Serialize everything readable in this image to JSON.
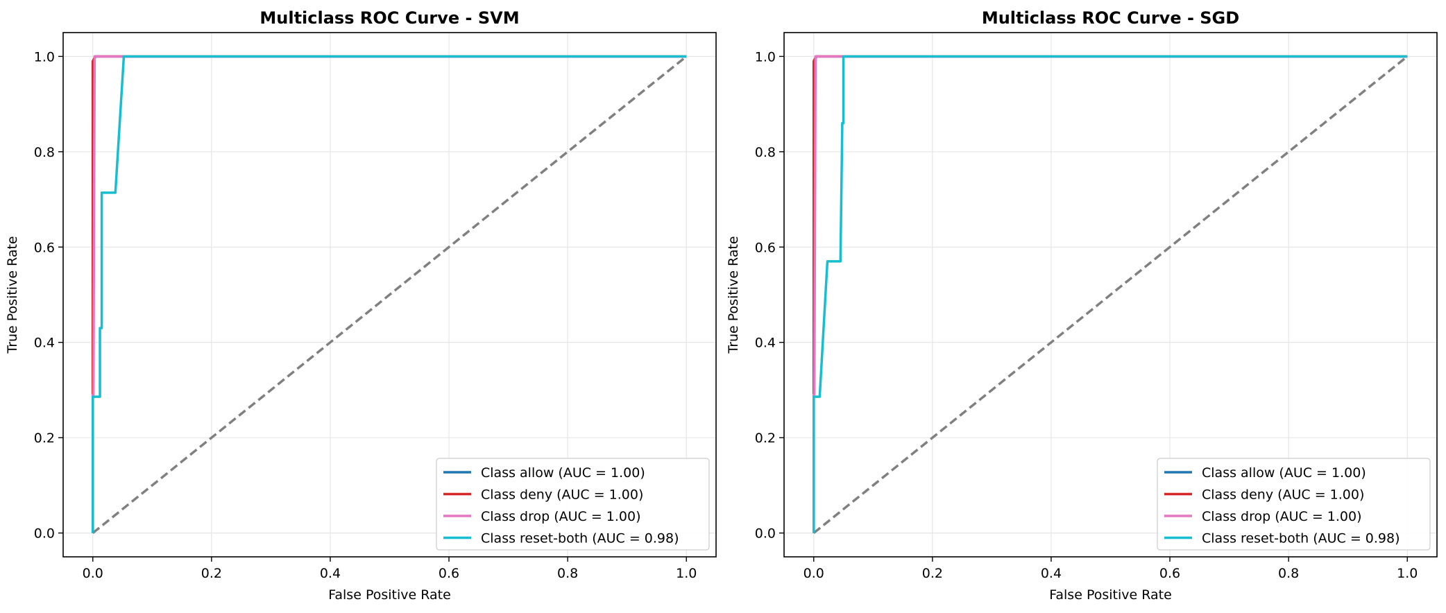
{
  "chart_data": [
    {
      "type": "line",
      "title": "Multiclass ROC Curve - SVM",
      "xlabel": "False Positive Rate",
      "ylabel": "True Positive Rate",
      "xlim": [
        -0.05,
        1.05
      ],
      "ylim": [
        -0.05,
        1.05
      ],
      "xticks": [
        "0.0",
        "0.2",
        "0.4",
        "0.6",
        "0.8",
        "1.0"
      ],
      "yticks": [
        "0.0",
        "0.2",
        "0.4",
        "0.6",
        "0.8",
        "1.0"
      ],
      "grid": true,
      "legend_position": "lower-right",
      "series": [
        {
          "name": "Class allow (AUC = 1.00)",
          "color": "#1f77b4",
          "x": [
            0,
            0,
            0.005,
            1
          ],
          "y": [
            0,
            0.99,
            1.0,
            1.0
          ]
        },
        {
          "name": "Class deny (AUC = 1.00)",
          "color": "#d62728",
          "x": [
            0,
            0,
            0.004,
            1
          ],
          "y": [
            0,
            0.99,
            1.0,
            1.0
          ]
        },
        {
          "name": "Class drop (AUC = 1.00)",
          "color": "#e377c2",
          "x": [
            0,
            0,
            0.001,
            0.003,
            0.05,
            0.05,
            1
          ],
          "y": [
            0,
            0.29,
            0.29,
            1.0,
            1.0,
            1.0,
            1.0
          ]
        },
        {
          "name": "Class reset-both (AUC = 0.98)",
          "color": "#17becf",
          "x": [
            0,
            0,
            0.012,
            0.012,
            0.015,
            0.015,
            0.038,
            0.038,
            0.052,
            0.052,
            1
          ],
          "y": [
            0,
            0.286,
            0.286,
            0.43,
            0.43,
            0.714,
            0.714,
            0.714,
            0.995,
            1.0,
            1.0
          ]
        }
      ],
      "reference_line": {
        "x": [
          0,
          1
        ],
        "y": [
          0,
          1
        ],
        "color": "#808080",
        "style": "dashed"
      }
    },
    {
      "type": "line",
      "title": "Multiclass ROC Curve - SGD",
      "xlabel": "False Positive Rate",
      "ylabel": "True Positive Rate",
      "xlim": [
        -0.05,
        1.05
      ],
      "ylim": [
        -0.05,
        1.05
      ],
      "xticks": [
        "0.0",
        "0.2",
        "0.4",
        "0.6",
        "0.8",
        "1.0"
      ],
      "yticks": [
        "0.0",
        "0.2",
        "0.4",
        "0.6",
        "0.8",
        "1.0"
      ],
      "grid": true,
      "legend_position": "lower-right",
      "series": [
        {
          "name": "Class allow (AUC = 1.00)",
          "color": "#1f77b4",
          "x": [
            0,
            0,
            0.005,
            1
          ],
          "y": [
            0,
            0.99,
            1.0,
            1.0
          ]
        },
        {
          "name": "Class deny (AUC = 1.00)",
          "color": "#d62728",
          "x": [
            0,
            0,
            0.004,
            1
          ],
          "y": [
            0,
            0.99,
            1.0,
            1.0
          ]
        },
        {
          "name": "Class drop (AUC = 1.00)",
          "color": "#e377c2",
          "x": [
            0,
            0,
            0.001,
            0.003,
            0.05,
            1
          ],
          "y": [
            0,
            0.29,
            0.29,
            1.0,
            1.0,
            1.0
          ]
        },
        {
          "name": "Class reset-both (AUC = 0.98)",
          "color": "#17becf",
          "x": [
            0,
            0,
            0.01,
            0.01,
            0.023,
            0.023,
            0.045,
            0.045,
            0.048,
            0.048,
            0.05,
            0.05,
            1
          ],
          "y": [
            0,
            0.286,
            0.286,
            0.286,
            0.57,
            0.57,
            0.57,
            0.57,
            0.85,
            0.86,
            0.86,
            1.0,
            1.0
          ]
        }
      ],
      "reference_line": {
        "x": [
          0,
          1
        ],
        "y": [
          0,
          1
        ],
        "color": "#808080",
        "style": "dashed"
      }
    }
  ]
}
